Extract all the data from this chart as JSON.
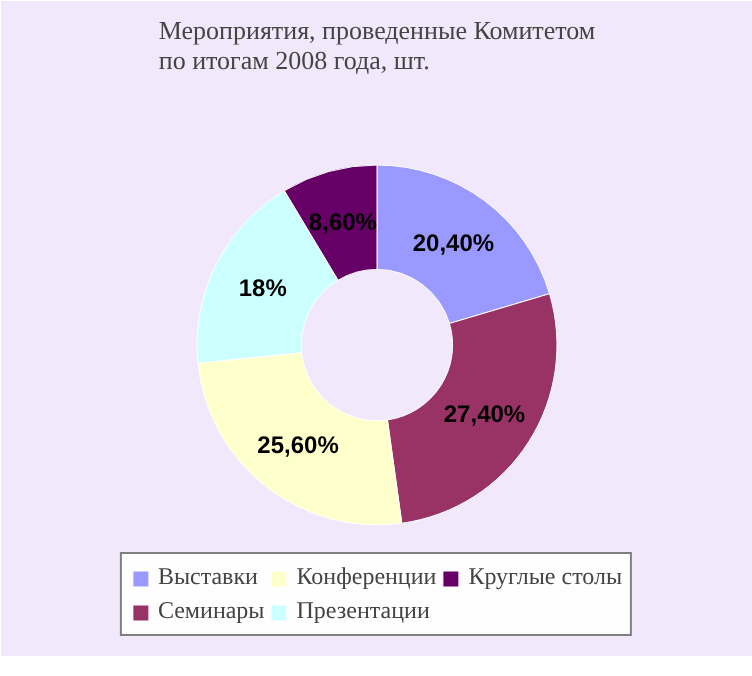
{
  "chart_data": {
    "type": "donut",
    "title": "Мероприятия, проведенные Комитетом по итогам 2008 года, шт.",
    "categories": [
      "Выставки",
      "Семинары",
      "Конференции",
      "Презентации",
      "Круглые столы"
    ],
    "values": [
      20.4,
      27.4,
      25.6,
      18,
      8.6
    ],
    "value_labels": [
      "20,40%",
      "27,40%",
      "25,60%",
      "18%",
      "8,60%"
    ],
    "colors": [
      "#9999ff",
      "#993366",
      "#ffffcc",
      "#ccffff",
      "#660066"
    ],
    "legend": "bottom"
  }
}
